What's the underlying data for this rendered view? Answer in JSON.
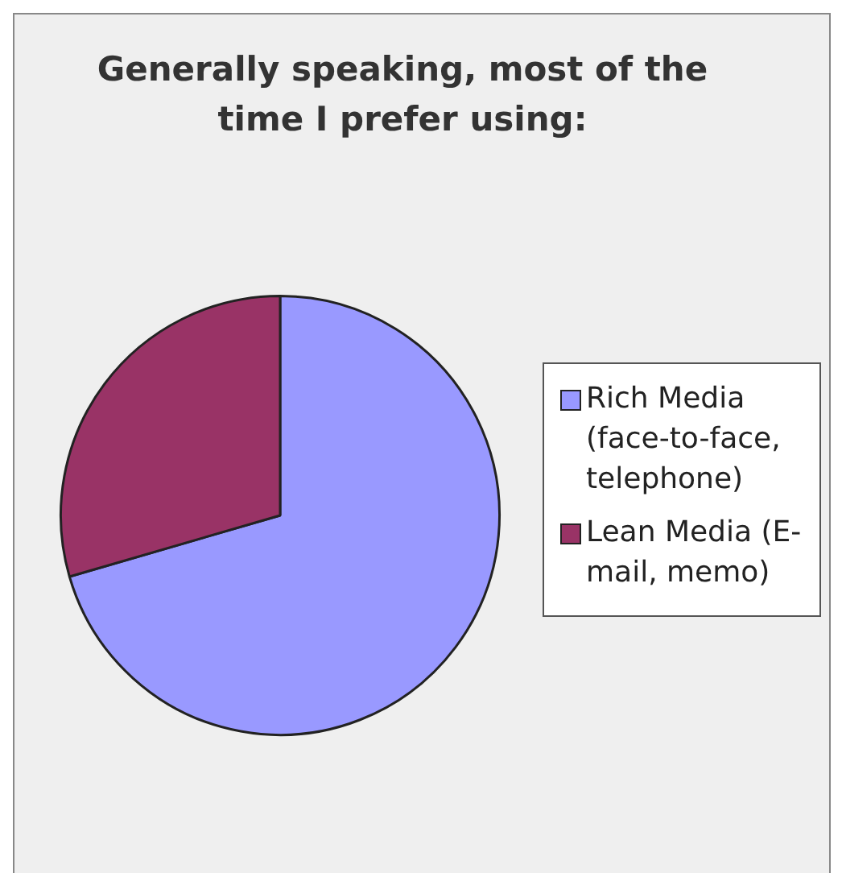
{
  "chart_data": {
    "type": "pie",
    "title": "Generally speaking, most of the time I prefer using:",
    "categories": [
      "Rich Media (face-to-face, telephone)",
      "Lean Media (E-mail, memo)"
    ],
    "values": [
      70.5,
      29.5
    ],
    "colors": [
      "#9999ff",
      "#993366"
    ],
    "legend": "right"
  }
}
